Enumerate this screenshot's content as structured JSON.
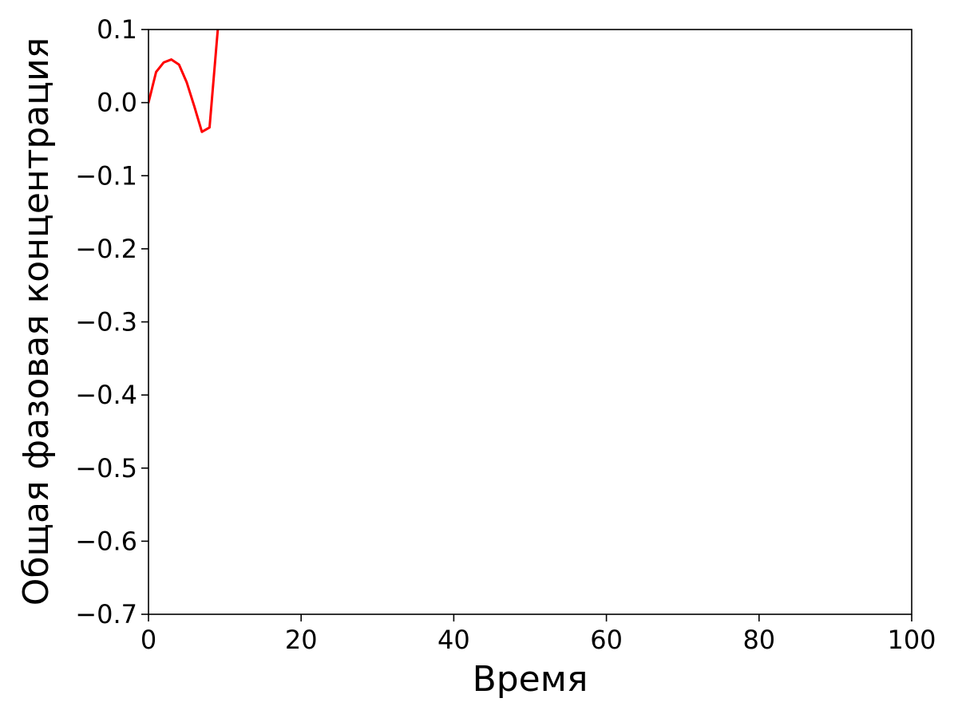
{
  "chart_data": {
    "type": "line",
    "title": "",
    "xlabel": "Время",
    "ylabel": "Общая фазовая концентрация",
    "xlim": [
      0,
      100
    ],
    "ylim": [
      -0.7,
      0.1
    ],
    "xticks": [
      0,
      20,
      40,
      60,
      80,
      100
    ],
    "xtick_labels": [
      "0",
      "20",
      "40",
      "60",
      "80",
      "100"
    ],
    "yticks": [
      0.1,
      0.0,
      -0.1,
      -0.2,
      -0.3,
      -0.4,
      -0.5,
      -0.6,
      -0.7
    ],
    "ytick_labels": [
      "0.1",
      "0.0",
      "−0.1",
      "−0.2",
      "−0.3",
      "−0.4",
      "−0.5",
      "−0.6",
      "−0.7"
    ],
    "grid": false,
    "legend": "none",
    "series": [
      {
        "color": "#ff0000",
        "x": [
          0,
          1,
          2,
          3,
          4,
          5,
          6,
          7,
          8,
          9,
          10
        ],
        "y": [
          0.0,
          0.042,
          0.055,
          0.059,
          0.052,
          0.028,
          -0.005,
          -0.04,
          -0.034,
          0.09,
          0.21
        ]
      }
    ]
  }
}
